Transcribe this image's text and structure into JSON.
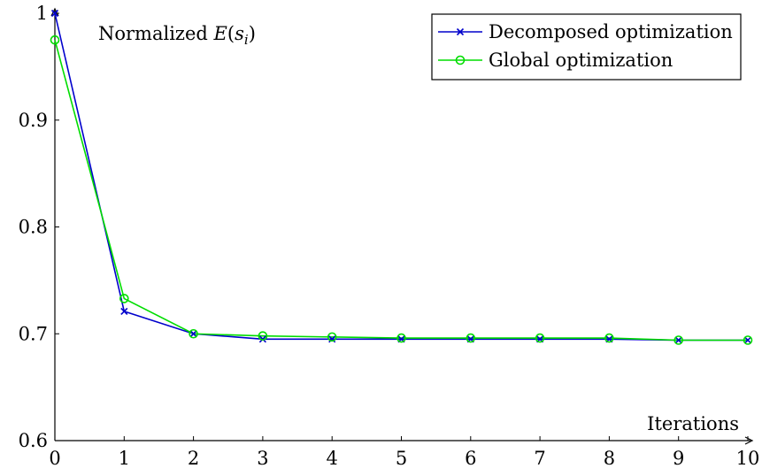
{
  "chart_data": {
    "type": "line",
    "title": "",
    "ylabel": "Normalized E(s_i)",
    "xlabel": "Iterations",
    "x": [
      0,
      1,
      2,
      3,
      4,
      5,
      6,
      7,
      8,
      9,
      10
    ],
    "xlim": [
      0,
      10
    ],
    "ylim": [
      0.6,
      1.0
    ],
    "xticks": [
      0,
      1,
      2,
      3,
      4,
      5,
      6,
      7,
      8,
      9,
      10
    ],
    "yticks": [
      0.6,
      0.7,
      0.8,
      0.9,
      1.0
    ],
    "ytick_labels": [
      "0.6",
      "0.7",
      "0.8",
      "0.9",
      "1"
    ],
    "grid": false,
    "legend_position": "top-right",
    "series": [
      {
        "name": "Decomposed optimization",
        "color": "#0000cc",
        "marker": "x",
        "values": [
          1.0,
          0.721,
          0.7,
          0.695,
          0.695,
          0.695,
          0.695,
          0.695,
          0.695,
          0.694,
          0.694
        ]
      },
      {
        "name": "Global optimization",
        "color": "#00dd00",
        "marker": "circle",
        "values": [
          0.975,
          0.733,
          0.7,
          0.698,
          0.697,
          0.696,
          0.696,
          0.696,
          0.696,
          0.694,
          0.694
        ]
      }
    ]
  }
}
